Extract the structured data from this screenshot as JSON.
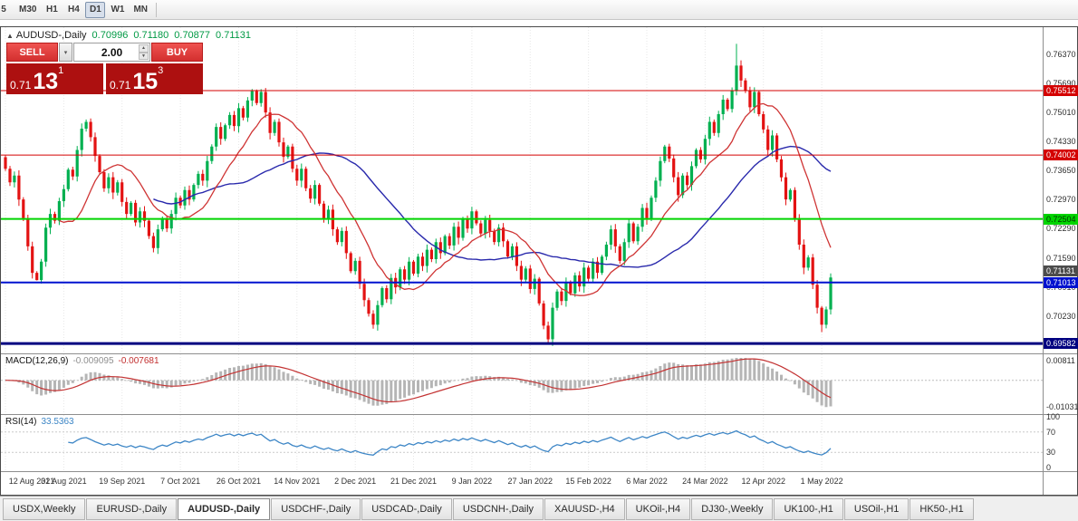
{
  "toolbar": {
    "timeframes": [
      {
        "label": "5",
        "active": false
      },
      {
        "label": "M30",
        "active": false
      },
      {
        "label": "H1",
        "active": false
      },
      {
        "label": "H4",
        "active": false
      },
      {
        "label": "D1",
        "active": true
      },
      {
        "label": "W1",
        "active": false
      },
      {
        "label": "MN",
        "active": false
      }
    ]
  },
  "chart": {
    "title_symbol": "AUDUSD-,Daily",
    "shift_icon": "▲",
    "ohlc": {
      "open": "0.70996",
      "high": "0.71180",
      "low": "0.70877",
      "close": "0.71131"
    },
    "price_axis_labels": [
      "0.76370",
      "0.75690",
      "0.75010",
      "0.74330",
      "0.73650",
      "0.72970",
      "0.72290",
      "0.71590",
      "0.70910",
      "0.70230"
    ],
    "levels": [
      {
        "price": "0.75512",
        "color": "#d40000",
        "fg": "#ffffff",
        "width": 1
      },
      {
        "price": "0.74002",
        "color": "#d40000",
        "fg": "#ffffff",
        "width": 1
      },
      {
        "price": "0.72504",
        "color": "#00d400",
        "fg": "#003300",
        "width": 2
      },
      {
        "price": "0.71013",
        "color": "#0012cf",
        "fg": "#ffffff",
        "width": 2
      },
      {
        "price": "0.69582",
        "color": "#000080",
        "fg": "#ffffff",
        "width": 3
      }
    ],
    "current_price_badge": {
      "label": "0.71131",
      "bg": "#4c4c4c"
    },
    "date_labels": [
      {
        "label": "12 Aug 2021",
        "bar": 0
      },
      {
        "label": "31 Aug 2021",
        "bar": 13
      },
      {
        "label": "19 Sep 2021",
        "bar": 26
      },
      {
        "label": "7 Oct 2021",
        "bar": 39
      },
      {
        "label": "26 Oct 2021",
        "bar": 52
      },
      {
        "label": "14 Nov 2021",
        "bar": 65
      },
      {
        "label": "2 Dec 2021",
        "bar": 78
      },
      {
        "label": "21 Dec 2021",
        "bar": 91
      },
      {
        "label": "9 Jan 2022",
        "bar": 104
      },
      {
        "label": "27 Jan 2022",
        "bar": 117
      },
      {
        "label": "15 Feb 2022",
        "bar": 130
      },
      {
        "label": "6 Mar 2022",
        "bar": 143
      },
      {
        "label": "24 Mar 2022",
        "bar": 156
      },
      {
        "label": "12 Apr 2022",
        "bar": 169
      },
      {
        "label": "1 May 2022",
        "bar": 182
      }
    ]
  },
  "trade": {
    "sell_label": "SELL",
    "buy_label": "BUY",
    "volume": "2.00",
    "dropdown_icon": "▾",
    "spin_up_icon": "▲",
    "spin_down_icon": "▼",
    "bid_small": "0.71",
    "bid_big": "13",
    "bid_sup": "1",
    "ask_small": "0.71",
    "ask_big": "15",
    "ask_sup": "3"
  },
  "macd": {
    "label": "MACD(12,26,9)",
    "value_main": "-0.009095",
    "value_signal": "-0.007681",
    "axis_max": "0.00811",
    "axis_min": "-0.01031"
  },
  "rsi": {
    "label": "RSI(14)",
    "value": "33.5363",
    "axis": [
      "100",
      "70",
      "30",
      "0"
    ]
  },
  "tabs": [
    {
      "label": "USDX,Weekly",
      "active": false
    },
    {
      "label": "EURUSD-,Daily",
      "active": false
    },
    {
      "label": "AUDUSD-,Daily",
      "active": true
    },
    {
      "label": "USDCHF-,Daily",
      "active": false
    },
    {
      "label": "USDCAD-,Daily",
      "active": false
    },
    {
      "label": "USDCNH-,Daily",
      "active": false
    },
    {
      "label": "XAUUSD-,H4",
      "active": false
    },
    {
      "label": "UKOil-,H4",
      "active": false
    },
    {
      "label": "DJ30-,Weekly",
      "active": false
    },
    {
      "label": "UK100-,H1",
      "active": false
    },
    {
      "label": "USOil-,H1",
      "active": false
    },
    {
      "label": "HK50-,H1",
      "active": false
    }
  ],
  "chart_data": {
    "type": "candlestick",
    "symbol": "AUDUSD",
    "timeframe": "Daily",
    "title": "AUDUSD-,Daily",
    "ylim": [
      0.6935,
      0.77
    ],
    "first_open": 0.7395,
    "closes": [
      0.7368,
      0.7336,
      0.7352,
      0.7296,
      0.7252,
      0.7186,
      0.7124,
      0.7107,
      0.715,
      0.723,
      0.7262,
      0.7246,
      0.7292,
      0.732,
      0.7366,
      0.735,
      0.7412,
      0.7462,
      0.7478,
      0.7442,
      0.7398,
      0.736,
      0.7322,
      0.7348,
      0.7312,
      0.7336,
      0.729,
      0.7262,
      0.7288,
      0.7242,
      0.7268,
      0.7246,
      0.721,
      0.7182,
      0.7226,
      0.7252,
      0.7228,
      0.7262,
      0.73,
      0.7282,
      0.7318,
      0.7296,
      0.733,
      0.7356,
      0.734,
      0.7386,
      0.742,
      0.7466,
      0.7438,
      0.747,
      0.7494,
      0.7468,
      0.751,
      0.7488,
      0.7528,
      0.755,
      0.7522,
      0.7548,
      0.75,
      0.7452,
      0.7478,
      0.743,
      0.7396,
      0.742,
      0.7368,
      0.734,
      0.7368,
      0.7322,
      0.7298,
      0.733,
      0.7286,
      0.725,
      0.7272,
      0.7226,
      0.7196,
      0.7222,
      0.717,
      0.7128,
      0.7152,
      0.7098,
      0.706,
      0.7028,
      0.7002,
      0.7048,
      0.7088,
      0.7062,
      0.7112,
      0.709,
      0.7132,
      0.7108,
      0.715,
      0.7122,
      0.7162,
      0.714,
      0.7178,
      0.7156,
      0.7196,
      0.717,
      0.721,
      0.7188,
      0.7232,
      0.7206,
      0.725,
      0.7228,
      0.7268,
      0.724,
      0.7216,
      0.7248,
      0.7222,
      0.7196,
      0.723,
      0.7198,
      0.7162,
      0.7186,
      0.714,
      0.7108,
      0.7134,
      0.7086,
      0.711,
      0.7052,
      0.7,
      0.6968,
      0.7042,
      0.708,
      0.7058,
      0.7102,
      0.7076,
      0.7118,
      0.7092,
      0.7136,
      0.711,
      0.715,
      0.7124,
      0.7162,
      0.719,
      0.7226,
      0.7186,
      0.7152,
      0.7196,
      0.724,
      0.7198,
      0.7232,
      0.7276,
      0.7252,
      0.73,
      0.734,
      0.7386,
      0.742,
      0.7392,
      0.7348,
      0.7306,
      0.7352,
      0.733,
      0.7374,
      0.7412,
      0.739,
      0.7438,
      0.7478,
      0.7452,
      0.7496,
      0.753,
      0.7508,
      0.7552,
      0.761,
      0.7575,
      0.7552,
      0.7512,
      0.7548,
      0.7496,
      0.746,
      0.7412,
      0.7446,
      0.739,
      0.7348,
      0.7296,
      0.7318,
      0.7252,
      0.719,
      0.7136,
      0.716,
      0.7096,
      0.7042,
      0.7002,
      0.7038,
      0.71131
    ],
    "wick_overrides": {
      "7": {
        "low": 0.7106
      },
      "55": {
        "high": 0.7555
      },
      "82": {
        "low": 0.6993
      },
      "121": {
        "low": 0.6958
      },
      "163": {
        "high": 0.7661
      },
      "182": {
        "low": 0.6985
      }
    },
    "ma_fast_period": 13,
    "ma_slow_period": 34,
    "indicators": {
      "macd_params": [
        12,
        26,
        9
      ],
      "rsi_period": 14
    }
  }
}
